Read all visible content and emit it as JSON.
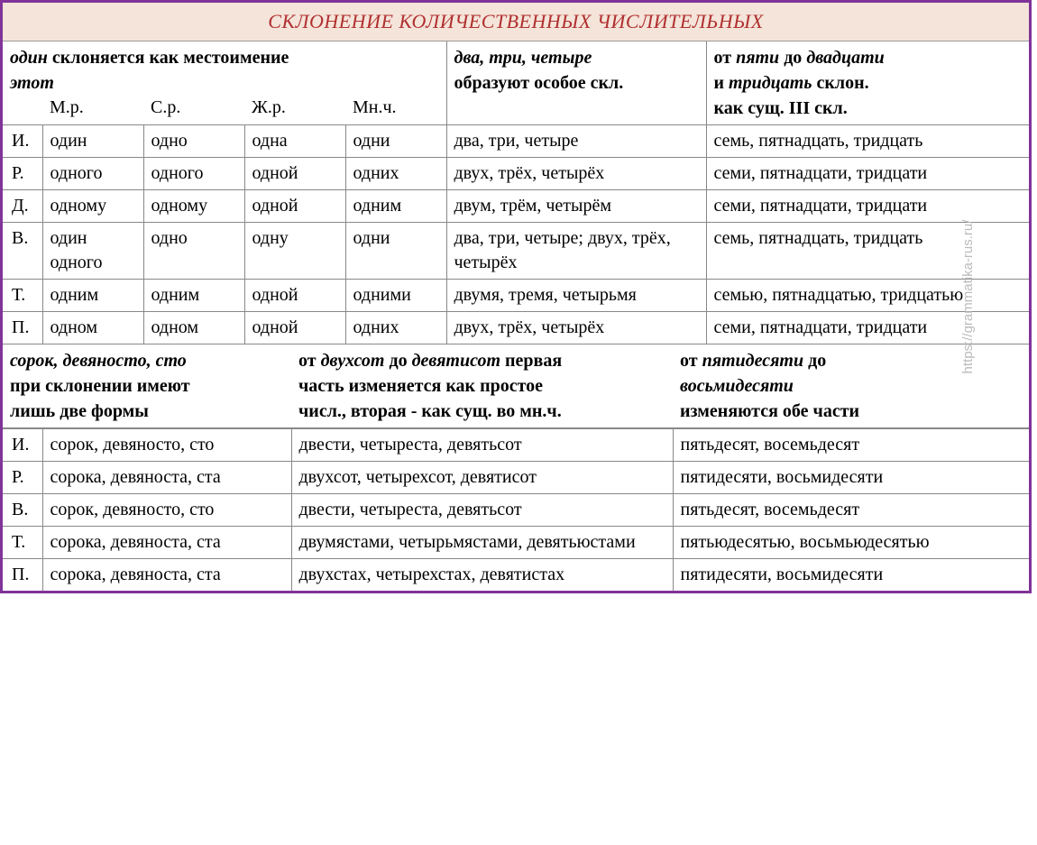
{
  "title": "СКЛОНЕНИЕ КОЛИЧЕСТВЕННЫХ ЧИСЛИТЕЛЬНЫХ",
  "watermark": "https://grammatika-rus.ru/",
  "section1": {
    "col1_hdr_l1a": "один",
    "col1_hdr_l1b": "  склоняется   как местоимение",
    "col1_hdr_l2": "этот",
    "mr": "М.р.",
    "sr": "С.р.",
    "zr": "Ж.р.",
    "mn": "Мн.ч.",
    "col2_hdr_l1": "два, три,  четыре",
    "col2_hdr_l2": "образуют особое скл.",
    "col3_hdr_l1a": "от ",
    "col3_hdr_l1b": "пяти",
    "col3_hdr_l1c": "  до ",
    "col3_hdr_l1d": "двадцати",
    "col3_hdr_l2a": " и ",
    "col3_hdr_l2b": "тридцать",
    "col3_hdr_l2c": "  склон.",
    "col3_hdr_l3": "как сущ.  III  скл.",
    "cases": [
      "И.",
      "Р.",
      "Д.",
      "В.",
      "Т.",
      "П."
    ],
    "rows": [
      {
        "mr": "один",
        "sr": "одно",
        "zr": "одна",
        "mn": "одни",
        "c2": "два, три, четыре",
        "c3": "семь, пятнадцать, тридцать"
      },
      {
        "mr": "одного",
        "sr": "одного",
        "zr": "одной",
        "mn": "одних",
        "c2": "двух, трёх, четырёх",
        "c3": "семи, пятнадцати, тридцати"
      },
      {
        "mr": "одному",
        "sr": "одному",
        "zr": "одной",
        "mn": "одним",
        "c2": "двум, трём, четырём",
        "c3": "семи, пятнадцати, тридцати"
      },
      {
        "mr": "один одного",
        "sr": "одно",
        "zr": "одну",
        "mn": "одни",
        "c2": "два, три, четыре; двух, трёх, четырёх",
        "c3": "семь, пятнадцать, тридцать"
      },
      {
        "mr": "одним",
        "sr": "одним",
        "zr": "одной",
        "mn": "одними",
        "c2": "двумя, тремя, четырьмя",
        "c3": "семью, пятнадцатью, тридцатью"
      },
      {
        "mr": "одном",
        "sr": "одном",
        "zr": "одной",
        "mn": "одних",
        "c2": "двух, трёх, четырёх",
        "c3": "семи, пятнадцати, тридцати"
      }
    ]
  },
  "section2": {
    "col1_l1": "сорок, девяносто, сто",
    "col1_l2": "при  склонении  имеют",
    "col1_l3": "лишь две формы",
    "col2_l1a": "от ",
    "col2_l1b": "двухсот",
    "col2_l1c": "  до  ",
    "col2_l1d": "девятисот",
    "col2_l1e": " первая",
    "col2_l2": "часть изменяется как простое",
    "col2_l3": "числ., вторая -  как сущ. во мн.ч.",
    "col3_l1a": "от ",
    "col3_l1b": "пятидесяти",
    "col3_l1c": "  до",
    "col3_l2": "восьмидесяти",
    "col3_l3": "изменяются обе части",
    "cases": [
      "И.",
      "Р.",
      "В.",
      "Т.",
      "П."
    ],
    "rows": [
      {
        "c1": "сорок, девяносто, сто",
        "c2": "двести, четыреста, девятьсот",
        "c3": "пятьдесят, восемьдесят"
      },
      {
        "c1": "сорока, девяноста, ста",
        "c2": "двухсот, четырехсот, девятисот",
        "c3": "пятидесяти, восьмидесяти"
      },
      {
        "c1": "сорок, девяносто, сто",
        "c2": "двести, четыреста, девятьсот",
        "c3": "пятьдесят, восемьдесят"
      },
      {
        "c1": "сорока, девяноста, ста",
        "c2": "двумястами, четырьмястами, девятьюстами",
        "c3": "пятьюдесятью, восьмьюдесятью"
      },
      {
        "c1": "сорока, девяноста, ста",
        "c2": "двухстах, четырехстах, девятистах",
        "c3": "пятидесяти, восьмидесяти"
      }
    ]
  }
}
